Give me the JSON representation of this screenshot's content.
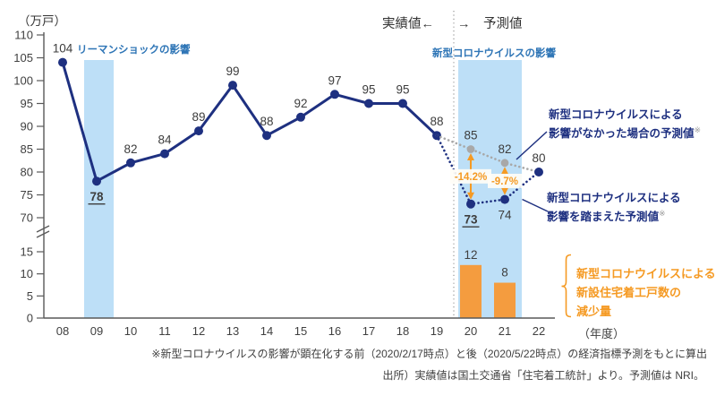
{
  "header": {
    "actual_label": "実績値←",
    "forecast_label": "→　予測値"
  },
  "chart_data": {
    "type": "line+bar",
    "title": "",
    "unit_label": "（万戸）",
    "xaxis_suffix": "（年度）",
    "categories": [
      "08",
      "09",
      "10",
      "11",
      "12",
      "13",
      "14",
      "15",
      "16",
      "17",
      "18",
      "19",
      "20",
      "21",
      "22"
    ],
    "y_ticks_upper": [
      110,
      105,
      100,
      95,
      90,
      85,
      80,
      75,
      70
    ],
    "y_ticks_lower": [
      15,
      10,
      5,
      0
    ],
    "upper_axis_range": [
      70,
      110
    ],
    "lower_axis_range": [
      0,
      15
    ],
    "axis_break": true,
    "grid": false,
    "separator_between": [
      "19",
      "20"
    ],
    "series": [
      {
        "id": "actual",
        "name": "実績値",
        "type": "line",
        "line_style": "solid",
        "color": "#1e3080",
        "marker_color": "#1e3080",
        "points": [
          {
            "x": "08",
            "v": 104
          },
          {
            "x": "09",
            "v": 78,
            "label_below": true,
            "emphasis": true
          },
          {
            "x": "10",
            "v": 82
          },
          {
            "x": "11",
            "v": 84
          },
          {
            "x": "12",
            "v": 89
          },
          {
            "x": "13",
            "v": 99
          },
          {
            "x": "14",
            "v": 88
          },
          {
            "x": "15",
            "v": 92
          },
          {
            "x": "16",
            "v": 97
          },
          {
            "x": "17",
            "v": 95
          },
          {
            "x": "18",
            "v": 95
          },
          {
            "x": "19",
            "v": 88
          }
        ]
      },
      {
        "id": "forecast_no_covid",
        "name": "新型コロナウイルスによる影響がなかった場合の予測値",
        "type": "line",
        "line_style": "dotted",
        "color": "#a8a8a8",
        "marker_color": "#a8a8a8",
        "points": [
          {
            "x": "19",
            "v": 88,
            "no_marker": true,
            "no_label": true
          },
          {
            "x": "20",
            "v": 85
          },
          {
            "x": "21",
            "v": 82
          },
          {
            "x": "22",
            "v": 80,
            "no_marker": true,
            "no_label": true
          }
        ]
      },
      {
        "id": "forecast_covid",
        "name": "新型コロナウイルスによる影響を踏まえた予測値",
        "type": "line",
        "line_style": "dotted",
        "color": "#1e3080",
        "marker_color": "#1e3080",
        "points": [
          {
            "x": "19",
            "v": 88,
            "no_marker": true,
            "no_label": true
          },
          {
            "x": "20",
            "v": 73,
            "label_below": true,
            "emphasis": true
          },
          {
            "x": "21",
            "v": 74,
            "label_below": true
          },
          {
            "x": "22",
            "v": 80
          }
        ]
      },
      {
        "id": "decrease_bars",
        "name": "新型コロナウイルスによる新設住宅着工戸数の減少量",
        "type": "bar",
        "color": "#f49c3f",
        "points": [
          {
            "x": "20",
            "v": 12
          },
          {
            "x": "21",
            "v": 8
          }
        ]
      }
    ],
    "pct_labels": [
      {
        "x": "20",
        "from_v": 85,
        "to_v": 73,
        "label": "-14.2%"
      },
      {
        "x": "21",
        "from_v": 82,
        "to_v": 74,
        "label": "-9.7%"
      }
    ],
    "bands": [
      {
        "x_from": "09",
        "x_to": "09",
        "label": "リーマンショックの影響",
        "color": "#bddff7"
      },
      {
        "x_from": "20",
        "x_to": "21",
        "label": "新型コロナウイルスの影響",
        "color": "#bddff7"
      }
    ]
  },
  "annotations": {
    "no_covid": {
      "line1": "新型コロナウイルスによる",
      "line2": "影響がなかった場合の予測値",
      "sup": "※"
    },
    "covid": {
      "line1": "新型コロナウイルスによる",
      "line2": "影響を踏まえた予測値",
      "sup": "※"
    },
    "decrease": {
      "line1": "新型コロナウイルスによる",
      "line2": "新設住宅着工戸数の",
      "line3": "減少量"
    }
  },
  "footnotes": {
    "line1": "※新型コロナウイルスの影響が顕在化する前（2020/2/17時点）と後（2020/5/22時点）の経済指標予測をもとに算出",
    "line2": "出所）実績値は国土交通省「住宅着工統計」より。予測値は NRI。"
  },
  "colors": {
    "navy": "#1e3080",
    "gray": "#a8a8a8",
    "band_blue": "#bddff7",
    "band_label_blue": "#2e75b6",
    "orange": "#f59a23",
    "bar_orange": "#f49c3f",
    "axis": "#595959",
    "text": "#404040"
  }
}
